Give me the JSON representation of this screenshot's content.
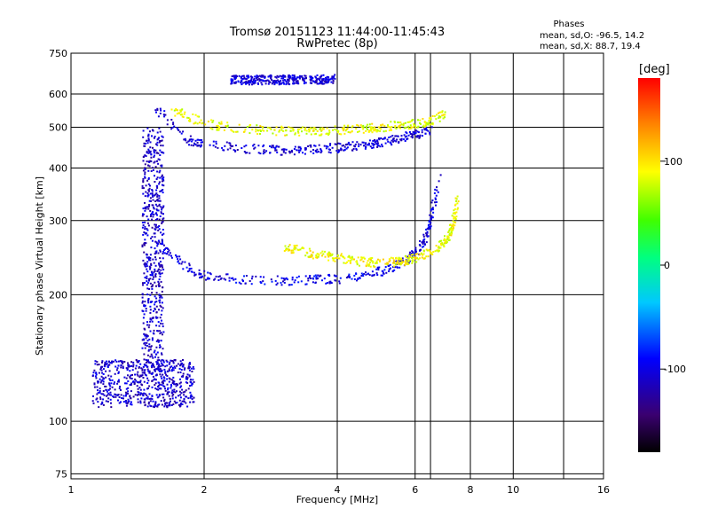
{
  "chart_data": {
    "type": "scatter",
    "title": "Tromsø 20151123 11:44:00-11:45:43",
    "subtitle": "RwPretec (8p)",
    "xlabel": "Frequency [MHz]",
    "ylabel": "Stationary phase Virtual Height [km]",
    "x_scale": "log",
    "y_scale": "log",
    "xlim": [
      1,
      16
    ],
    "ylim": [
      73,
      750
    ],
    "x_ticks": [
      1,
      2,
      4,
      6,
      8,
      10,
      16
    ],
    "x_gridlines": [
      2,
      4,
      6,
      6.5,
      8,
      10,
      13
    ],
    "y_ticks": [
      75,
      100,
      200,
      300,
      400,
      500,
      600,
      750
    ],
    "grid": true,
    "phases_legend": {
      "title": "Phases",
      "line_o": "mean, sd,O: -96.5, 14.2",
      "line_x": "mean, sd,X:  88.7, 19.4"
    },
    "colorbar": {
      "label": "[deg]",
      "range": [
        -180,
        180
      ],
      "tick_values": [
        100,
        0,
        -100
      ],
      "tick_labels": [
        "100",
        "0",
        "-100"
      ]
    },
    "traces": [
      {
        "trace": "F-region O-mode low-frequency spread",
        "x_range": [
          1.45,
          1.62
        ],
        "y_range": [
          130,
          500
        ],
        "phase": -110
      },
      {
        "trace": "E/F1 low spread cluster",
        "x_range": [
          1.12,
          1.9
        ],
        "y_range": [
          108,
          140
        ],
        "phase": -110
      },
      {
        "trace": "F2 O-mode trace",
        "x": [
          1.6,
          1.8,
          2.0,
          2.5,
          3.0,
          3.5,
          4.0,
          4.5,
          5.0,
          5.5,
          6.0,
          6.3,
          6.5,
          6.8
        ],
        "y": [
          260,
          235,
          222,
          217,
          216,
          217,
          218,
          221,
          227,
          236,
          250,
          270,
          300,
          380
        ],
        "phase": -100
      },
      {
        "trace": "F2 X-mode trace",
        "x": [
          3.05,
          3.5,
          4.0,
          4.5,
          5.0,
          5.5,
          6.0,
          6.5,
          7.0,
          7.3,
          7.5
        ],
        "y": [
          260,
          250,
          245,
          240,
          238,
          240,
          244,
          252,
          265,
          290,
          340
        ],
        "phase": 90
      },
      {
        "trace": "Second-hop O-mode trace",
        "x": [
          1.55,
          1.8,
          2.0,
          2.5,
          3.0,
          3.5,
          4.0,
          4.5,
          5.0,
          5.5,
          6.0,
          6.5
        ],
        "y": [
          560,
          470,
          455,
          445,
          440,
          443,
          447,
          452,
          460,
          470,
          480,
          490
        ],
        "phase": -105
      },
      {
        "trace": "Second-hop X-mode trace",
        "x": [
          1.7,
          2.0,
          2.5,
          3.0,
          3.5,
          4.0,
          4.5,
          5.0,
          5.5,
          6.0,
          6.5,
          7.0
        ],
        "y": [
          550,
          510,
          495,
          490,
          490,
          492,
          495,
          500,
          505,
          510,
          515,
          540
        ],
        "phase": 85
      },
      {
        "trace": "High-altitude echo",
        "x": [
          2.3,
          2.6,
          3.0,
          3.5,
          3.95
        ],
        "y": [
          647,
          648,
          648,
          649,
          650
        ],
        "phase": -105
      }
    ]
  }
}
